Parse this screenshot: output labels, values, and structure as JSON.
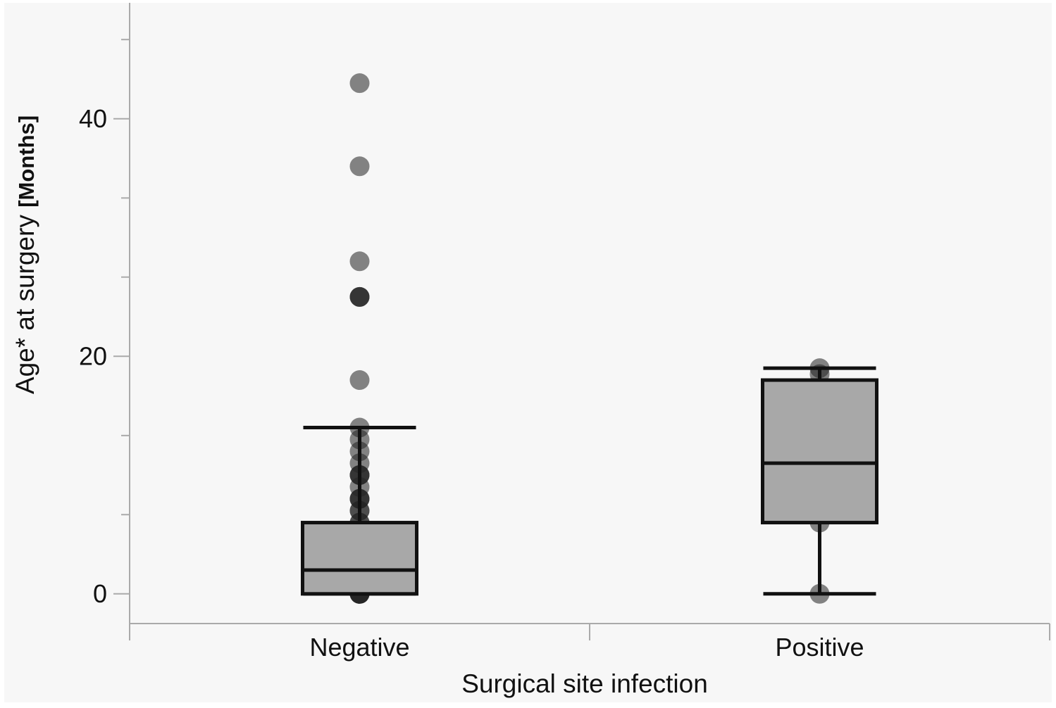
{
  "chart_data": {
    "type": "box",
    "xlabel": "Surgical site infection",
    "ylabel": "Age* at surgery",
    "ylabel_unit": "[Months]",
    "ylim": [
      -2.5,
      50
    ],
    "yticks_major": [
      0,
      20,
      40
    ],
    "yticks_minor": [
      6.67,
      13.33,
      26.67,
      33.33,
      46.67
    ],
    "categories": [
      "Negative",
      "Positive"
    ],
    "grid": false,
    "legend": "none",
    "colors": {
      "box_fill": "#a8a8a8",
      "box_stroke": "#111111",
      "point": "#222222",
      "axis": "#aaaaaa",
      "background": "#f7f7f7"
    },
    "boxes": [
      {
        "category": "Negative",
        "q1": 0,
        "median": 2,
        "q3": 6,
        "whisker_low": 0,
        "whisker_high": 14,
        "points": [
          0,
          0,
          0,
          0,
          0,
          1,
          1,
          2,
          2,
          2,
          3,
          3,
          4,
          4,
          5,
          5,
          6,
          6,
          7,
          7,
          8,
          8,
          8,
          9,
          10,
          10,
          10,
          11,
          12,
          13,
          14,
          18,
          25,
          25,
          25,
          28,
          36,
          43
        ]
      },
      {
        "category": "Positive",
        "q1": 6,
        "median": 11,
        "q3": 18,
        "whisker_low": 0,
        "whisker_high": 19,
        "points": [
          0,
          6,
          18.5,
          19
        ]
      }
    ]
  }
}
